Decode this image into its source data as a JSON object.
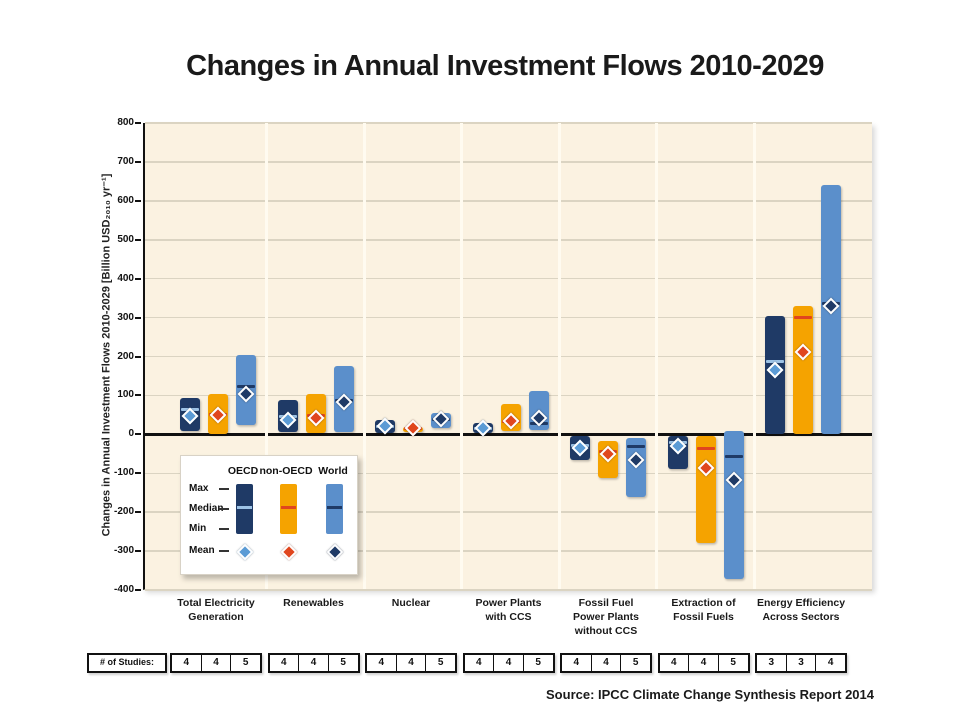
{
  "title": "Changes in Annual Investment Flows 2010-2029",
  "y_axis_label": "Changes in Annual Investment Flows 2010-2029 [Billion USD₂₀₁₀ yr⁻¹]",
  "source_note": "Source: IPCC Climate Change Synthesis Report 2014",
  "studies_row_label": "# of Studies:",
  "legend": {
    "columns": [
      "OECD",
      "non-OECD",
      "World"
    ],
    "rows": [
      "Max",
      "Median",
      "Min",
      "Mean"
    ]
  },
  "colors": {
    "plot_bg": "#FBF2E1",
    "gridline": "#DBD4C2",
    "separator": "#FFFBF0",
    "axis": "#111111",
    "series": {
      "OECD": {
        "bar": "#1F3A66",
        "median": "#9DC3E6",
        "mean": "#5B9BD5"
      },
      "non-OECD": {
        "bar": "#F5A300",
        "median": "#E0461E",
        "mean": "#E0461E"
      },
      "World": {
        "bar": "#5B8FCB",
        "median": "#1F3A66",
        "mean": "#1F3A66"
      }
    }
  },
  "chart_data": {
    "type": "bar",
    "subtype": "floating-range-bars-with-median-line-and-mean-diamond",
    "title": "Changes in Annual Investment Flows 2010-2029",
    "ylabel": "Changes in Annual Investment Flows 2010-2029 [Billion USD2010 yr-1]",
    "xlabel": "",
    "ylim": [
      -400,
      800
    ],
    "ytick_step": 100,
    "grid": true,
    "legend_position": "inside plot, lower left",
    "units": "Billion USD (2010) per year",
    "series_names": [
      "OECD",
      "non-OECD",
      "World"
    ],
    "categories": [
      "Total Electricity Generation",
      "Renewables",
      "Nuclear",
      "Power Plants with CCS",
      "Fossil Fuel Power Plants without CCS",
      "Extraction of Fossil Fuels",
      "Energy Efficiency Across Sectors"
    ],
    "groups": [
      {
        "category": "Total Electricity Generation",
        "label_lines": [
          "Total Electricity",
          "Generation"
        ],
        "num_studies": [
          4,
          4,
          5
        ],
        "bars": [
          {
            "series": "OECD",
            "min": 8,
            "max": 93,
            "median": 63,
            "mean": 48
          },
          {
            "series": "non-OECD",
            "min": 0,
            "max": 104,
            "median": 52,
            "mean": 50
          },
          {
            "series": "World",
            "min": 24,
            "max": 205,
            "median": 123,
            "mean": 104
          }
        ]
      },
      {
        "category": "Renewables",
        "label_lines": [
          "Renewables"
        ],
        "num_studies": [
          4,
          4,
          5
        ],
        "bars": [
          {
            "series": "OECD",
            "min": 6,
            "max": 88,
            "median": 46,
            "mean": 37
          },
          {
            "series": "non-OECD",
            "min": 3,
            "max": 104,
            "median": 48,
            "mean": 43
          },
          {
            "series": "World",
            "min": 6,
            "max": 175,
            "median": 88,
            "mean": 82
          }
        ]
      },
      {
        "category": "Nuclear",
        "label_lines": [
          "Nuclear"
        ],
        "num_studies": [
          4,
          4,
          5
        ],
        "bars": [
          {
            "series": "OECD",
            "min": 3,
            "max": 38,
            "median": 21,
            "mean": 22
          },
          {
            "series": "non-OECD",
            "min": 7,
            "max": 20,
            "median": 14,
            "mean": 15
          },
          {
            "series": "World",
            "min": 16,
            "max": 56,
            "median": 38,
            "mean": 40
          }
        ]
      },
      {
        "category": "Power Plants with CCS",
        "label_lines": [
          "Power Plants",
          "with CCS"
        ],
        "num_studies": [
          4,
          4,
          5
        ],
        "bars": [
          {
            "series": "OECD",
            "min": 3,
            "max": 28,
            "median": 15,
            "mean": 17
          },
          {
            "series": "non-OECD",
            "min": 8,
            "max": 77,
            "median": 32,
            "mean": 33
          },
          {
            "series": "World",
            "min": 12,
            "max": 112,
            "median": 27,
            "mean": 41
          }
        ]
      },
      {
        "category": "Fossil Fuel Power Plants without CCS",
        "label_lines": [
          "Fossil Fuel",
          "Power Plants",
          "without CCS"
        ],
        "num_studies": [
          4,
          4,
          5
        ],
        "bars": [
          {
            "series": "OECD",
            "min": -66,
            "max": -4,
            "median": -29,
            "mean": -35
          },
          {
            "series": "non-OECD",
            "min": -113,
            "max": -17,
            "median": -43,
            "mean": -51
          },
          {
            "series": "World",
            "min": -160,
            "max": -9,
            "median": -31,
            "mean": -66
          }
        ]
      },
      {
        "category": "Extraction of Fossil Fuels",
        "label_lines": [
          "Extraction of",
          "Fossil Fuels"
        ],
        "num_studies": [
          4,
          4,
          5
        ],
        "bars": [
          {
            "series": "OECD",
            "min": -90,
            "max": -4,
            "median": -21,
            "mean": -31
          },
          {
            "series": "non-OECD",
            "min": -280,
            "max": -4,
            "median": -36,
            "mean": -86
          },
          {
            "series": "World",
            "min": -371,
            "max": 8,
            "median": -58,
            "mean": -117
          }
        ]
      },
      {
        "category": "Energy Efficiency Across Sectors",
        "label_lines": [
          "Energy Efficiency",
          "Across Sectors"
        ],
        "num_studies": [
          3,
          3,
          4
        ],
        "bars": [
          {
            "series": "OECD",
            "min": 1,
            "max": 305,
            "median": 188,
            "mean": 165
          },
          {
            "series": "non-OECD",
            "min": 1,
            "max": 330,
            "median": 300,
            "mean": 211
          },
          {
            "series": "World",
            "min": 1,
            "max": 640,
            "median": 335,
            "mean": 329
          }
        ]
      }
    ]
  }
}
